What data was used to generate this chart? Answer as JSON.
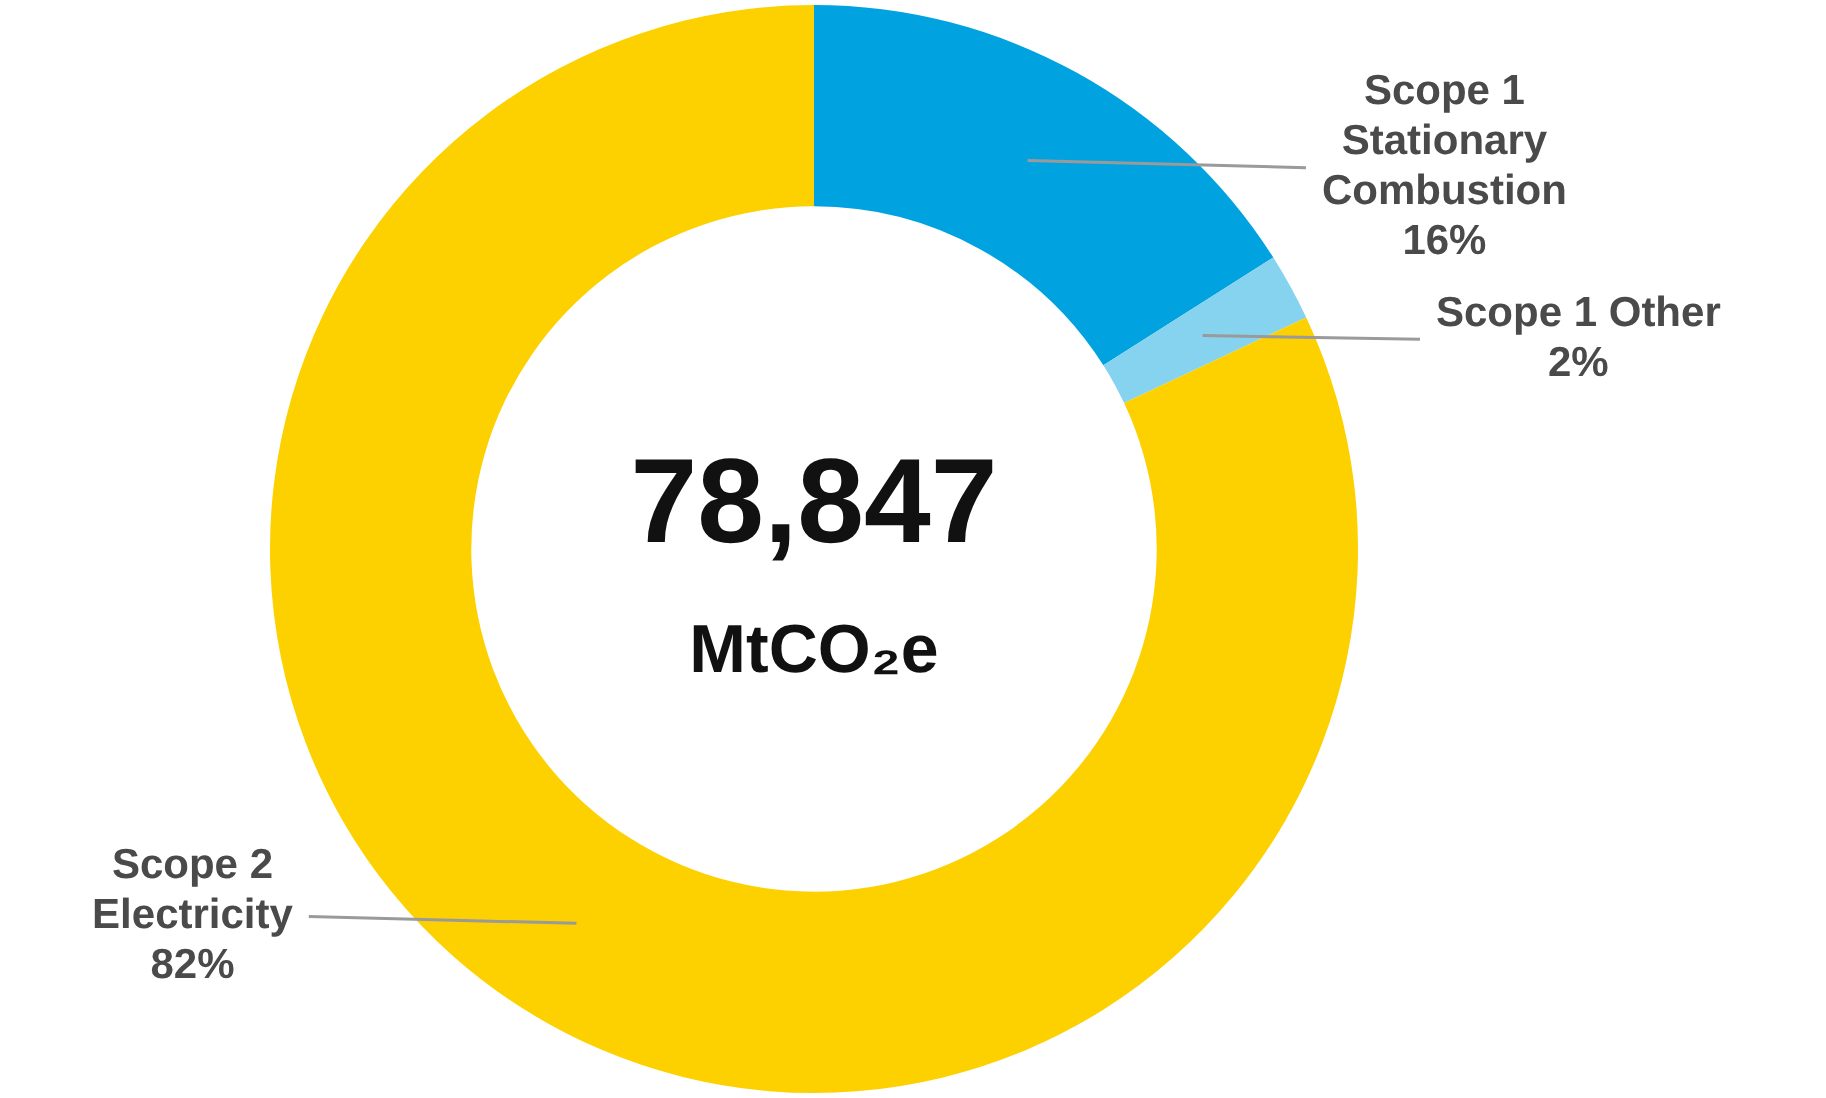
{
  "chart_data": {
    "type": "donut",
    "categories": [
      "Scope 1 Stationary Combustion",
      "Scope 1 Other",
      "Scope 2 Electricity"
    ],
    "values": [
      16,
      2,
      82
    ],
    "colors": [
      "#00a3e0",
      "#86d3f0",
      "#fdd000"
    ],
    "value_labels": [
      "16%",
      "2%",
      "82%"
    ],
    "annotations": [
      "78,847",
      "MtCO₂e"
    ],
    "legend": false
  }
}
